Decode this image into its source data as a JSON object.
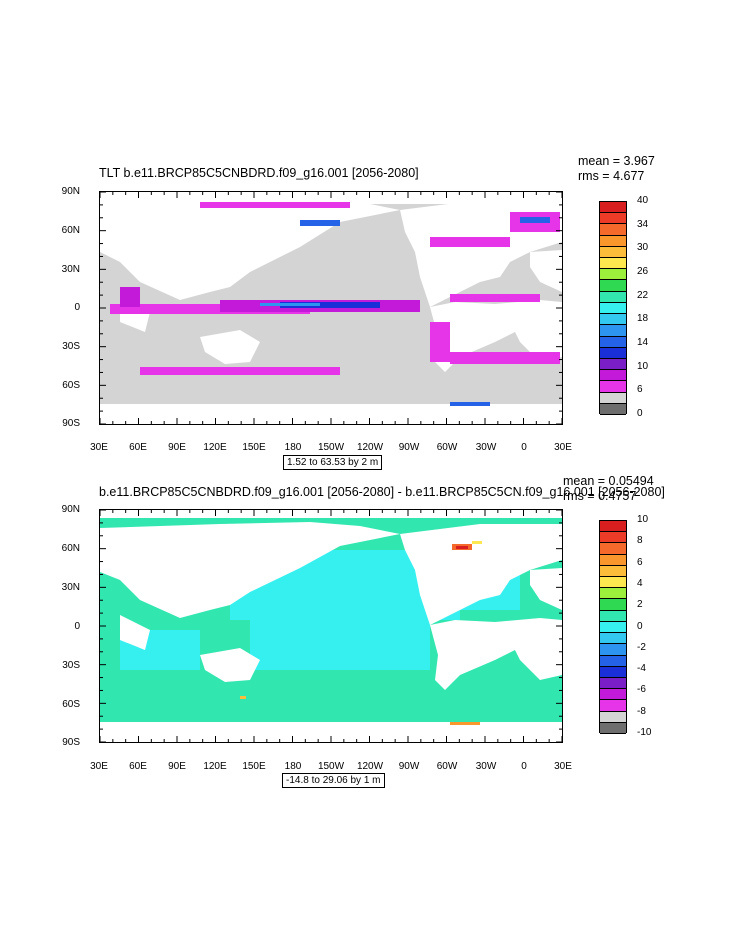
{
  "panels": [
    {
      "title": "TLT b.e11.BRCP85C5CNBDRD.f09_g16.001 [2056-2080]",
      "mean": "mean = 3.967",
      "rms": "rms = 4.677",
      "range": "1.52 to 63.53 by 2 m",
      "lat_labels": [
        "90N",
        "60N",
        "30N",
        "0",
        "30S",
        "60S",
        "90S"
      ],
      "lon_labels": [
        "30E",
        "60E",
        "90E",
        "120E",
        "150E",
        "180",
        "150W",
        "120W",
        "90W",
        "60W",
        "30W",
        "0",
        "30E"
      ],
      "colorbar": {
        "labels": [
          "40",
          "34",
          "30",
          "26",
          "22",
          "18",
          "14",
          "10",
          "6",
          "0"
        ],
        "colors": [
          "#d81e1e",
          "#ec3b26",
          "#f56a2a",
          "#f9972c",
          "#fcbd3b",
          "#fde84f",
          "#9cf03c",
          "#2fd952",
          "#32e6b0",
          "#36f0f0",
          "#32c8f0",
          "#2d95f0",
          "#2462e8",
          "#1a2fd8",
          "#7a1ec8",
          "#c21ad8",
          "#e634e8",
          "#d4d4d4",
          "#6e6e6e"
        ]
      }
    },
    {
      "title": "b.e11.BRCP85C5CNBDRD.f09_g16.001 [2056-2080] - b.e11.BRCP85C5CN.f09_g16.001 [2056-2080]",
      "mean": "mean = 0.05494",
      "rms": "rms = 0.4757",
      "range": "-14.8 to 29.06 by 1 m",
      "lat_labels": [
        "90N",
        "60N",
        "30N",
        "0",
        "30S",
        "60S",
        "90S"
      ],
      "lon_labels": [
        "30E",
        "60E",
        "90E",
        "120E",
        "150E",
        "180",
        "150W",
        "120W",
        "90W",
        "60W",
        "30W",
        "0",
        "30E"
      ],
      "colorbar": {
        "labels": [
          "10",
          "8",
          "6",
          "4",
          "2",
          "0",
          "-2",
          "-4",
          "-6",
          "-8",
          "-10"
        ],
        "colors": [
          "#d81e1e",
          "#ec3b26",
          "#f56a2a",
          "#f9972c",
          "#fcbd3b",
          "#fde84f",
          "#9cf03c",
          "#2fd952",
          "#32e6b0",
          "#36f0f0",
          "#32c8f0",
          "#2d95f0",
          "#2462e8",
          "#1a2fd8",
          "#7a1ec8",
          "#c21ad8",
          "#e634e8",
          "#d4d4d4",
          "#6e6e6e"
        ]
      }
    }
  ],
  "chart_data": [
    {
      "type": "heatmap",
      "title": "TLT b.e11.BRCP85C5CNBDRD.f09_g16.001 [2056-2080]",
      "xlabel": "",
      "ylabel": "",
      "x_range": [
        "30E",
        "30E"
      ],
      "y_range": [
        "90S",
        "90N"
      ],
      "value_range": [
        0,
        40
      ],
      "mean": 3.967,
      "rms": 4.677,
      "contour_info": "1.52 to 63.53 by 2 m",
      "colorbar_labels": [
        0,
        6,
        10,
        14,
        18,
        22,
        26,
        30,
        34,
        40
      ]
    },
    {
      "type": "heatmap",
      "title": "b.e11.BRCP85C5CNBDRD.f09_g16.001 [2056-2080] - b.e11.BRCP85C5CN.f09_g16.001 [2056-2080]",
      "xlabel": "",
      "ylabel": "",
      "x_range": [
        "30E",
        "30E"
      ],
      "y_range": [
        "90S",
        "90N"
      ],
      "value_range": [
        -10,
        10
      ],
      "mean": 0.05494,
      "rms": 0.4757,
      "contour_info": "-14.8 to 29.06 by 1 m",
      "colorbar_labels": [
        -10,
        -8,
        -6,
        -4,
        -2,
        0,
        2,
        4,
        6,
        8,
        10
      ]
    }
  ]
}
